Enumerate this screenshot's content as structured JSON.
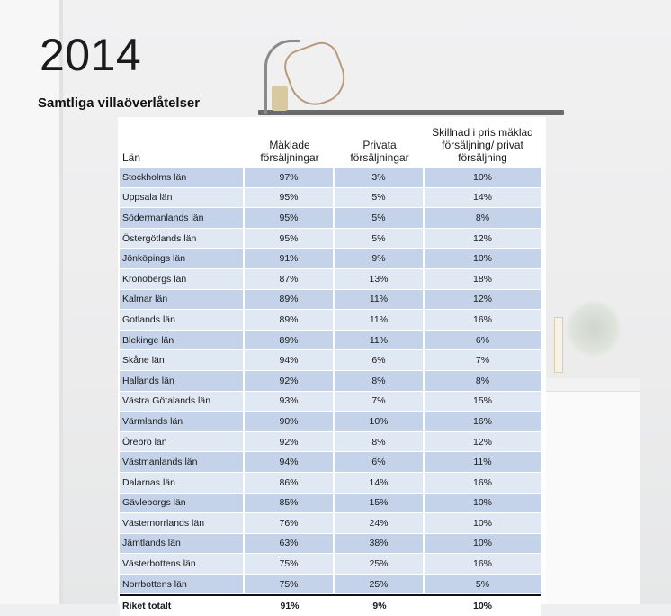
{
  "title": "2014",
  "subtitle": "Samtliga villaöverlåtelser",
  "chart_data": {
    "type": "table",
    "columns": [
      "Län",
      "Mäklade försäljningar",
      "Privata försäljningar",
      "Skillnad i pris mäklad försäljning/ privat försäljning"
    ],
    "rows": [
      [
        "Stockholms län",
        "97%",
        "3%",
        "10%"
      ],
      [
        "Uppsala län",
        "95%",
        "5%",
        "14%"
      ],
      [
        "Södermanlands län",
        "95%",
        "5%",
        "8%"
      ],
      [
        "Östergötlands län",
        "95%",
        "5%",
        "12%"
      ],
      [
        "Jönköpings län",
        "91%",
        "9%",
        "10%"
      ],
      [
        "Kronobergs län",
        "87%",
        "13%",
        "18%"
      ],
      [
        "Kalmar län",
        "89%",
        "11%",
        "12%"
      ],
      [
        "Gotlands län",
        "89%",
        "11%",
        "16%"
      ],
      [
        "Blekinge län",
        "89%",
        "11%",
        "6%"
      ],
      [
        "Skåne län",
        "94%",
        "6%",
        "7%"
      ],
      [
        "Hallands län",
        "92%",
        "8%",
        "8%"
      ],
      [
        "Västra Götalands län",
        "93%",
        "7%",
        "15%"
      ],
      [
        "Värmlands län",
        "90%",
        "10%",
        "16%"
      ],
      [
        "Örebro län",
        "92%",
        "8%",
        "12%"
      ],
      [
        "Västmanlands län",
        "94%",
        "6%",
        "11%"
      ],
      [
        "Dalarnas län",
        "86%",
        "14%",
        "16%"
      ],
      [
        "Gävleborgs län",
        "85%",
        "15%",
        "10%"
      ],
      [
        "Västernorrlands län",
        "76%",
        "24%",
        "10%"
      ],
      [
        "Jämtlands län",
        "63%",
        "38%",
        "10%"
      ],
      [
        "Västerbottens län",
        "75%",
        "25%",
        "16%"
      ],
      [
        "Norrbottens län",
        "75%",
        "25%",
        "5%"
      ]
    ],
    "total": [
      "Riket totalt",
      "91%",
      "9%",
      "10%"
    ]
  },
  "colors": {
    "row_dark": "#c5d3ea",
    "row_light": "#e0e8f4"
  }
}
